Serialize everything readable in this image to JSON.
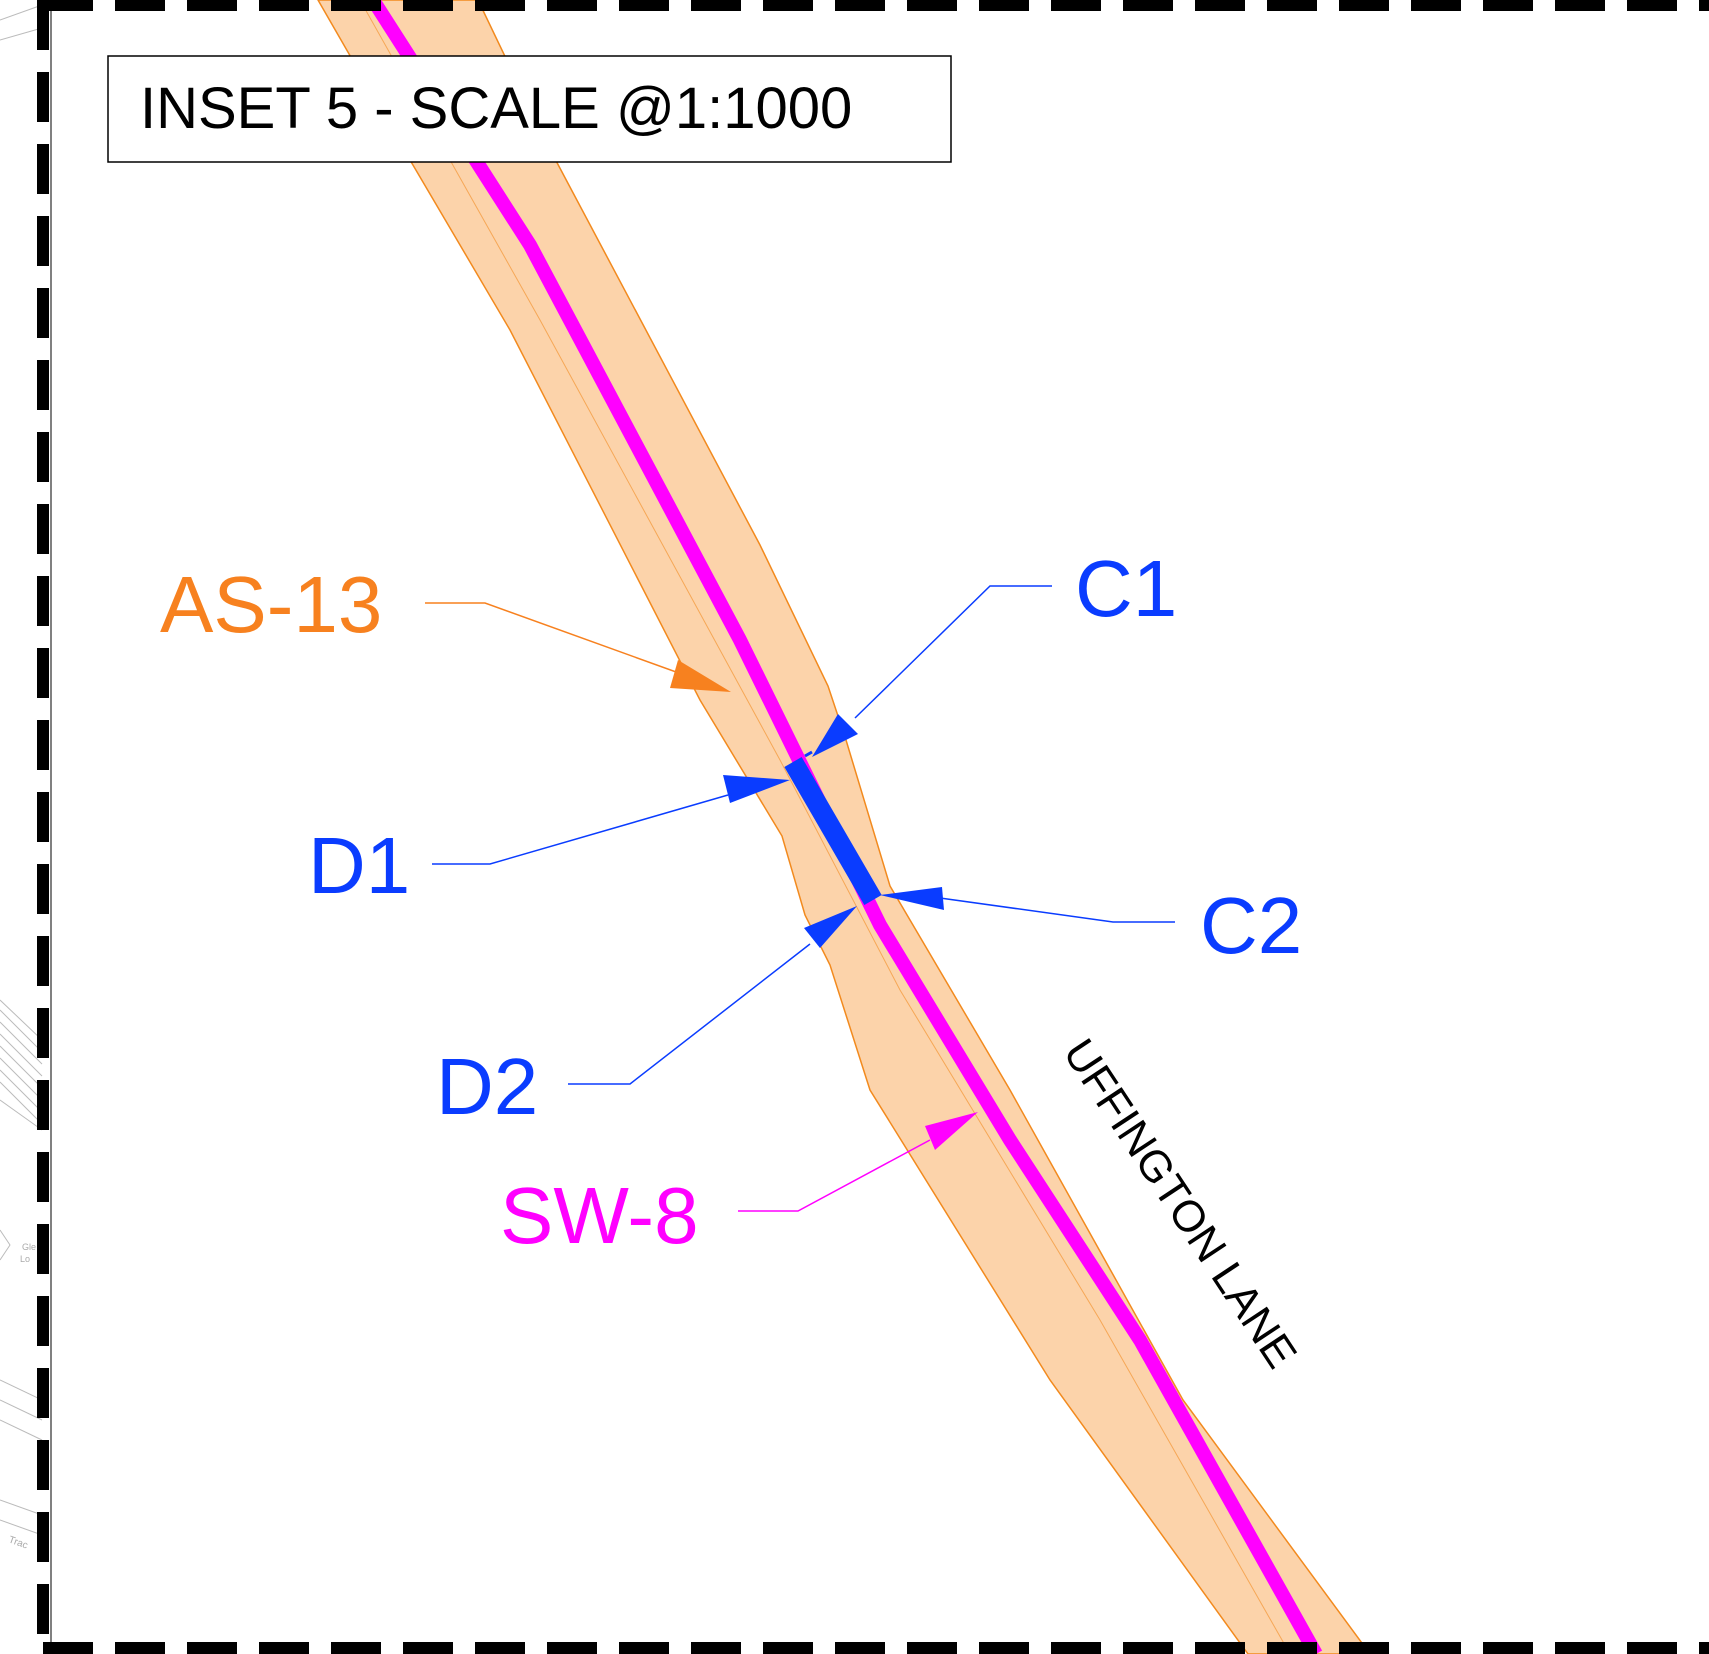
{
  "inset": {
    "title": "INSET 5 - SCALE @1:1000"
  },
  "road": {
    "name": "UFFINGTON LANE"
  },
  "labels": {
    "as13": "AS-13",
    "sw8": "SW-8",
    "c1": "C1",
    "c2": "C2",
    "d1": "D1",
    "d2": "D2"
  },
  "background_text": {
    "left_fragment_1": "Gle",
    "left_fragment_2": "Lo",
    "left_fragment_3": "Trac"
  },
  "colors": {
    "corridor_fill": "#fcd3aa",
    "corridor_edge": "#f28a1e",
    "sw_line": "#ff00ff",
    "crossing": "#0a3cff",
    "leader_blue": "#0a3cff",
    "as_label": "#f7811f",
    "frame": "#000000"
  }
}
